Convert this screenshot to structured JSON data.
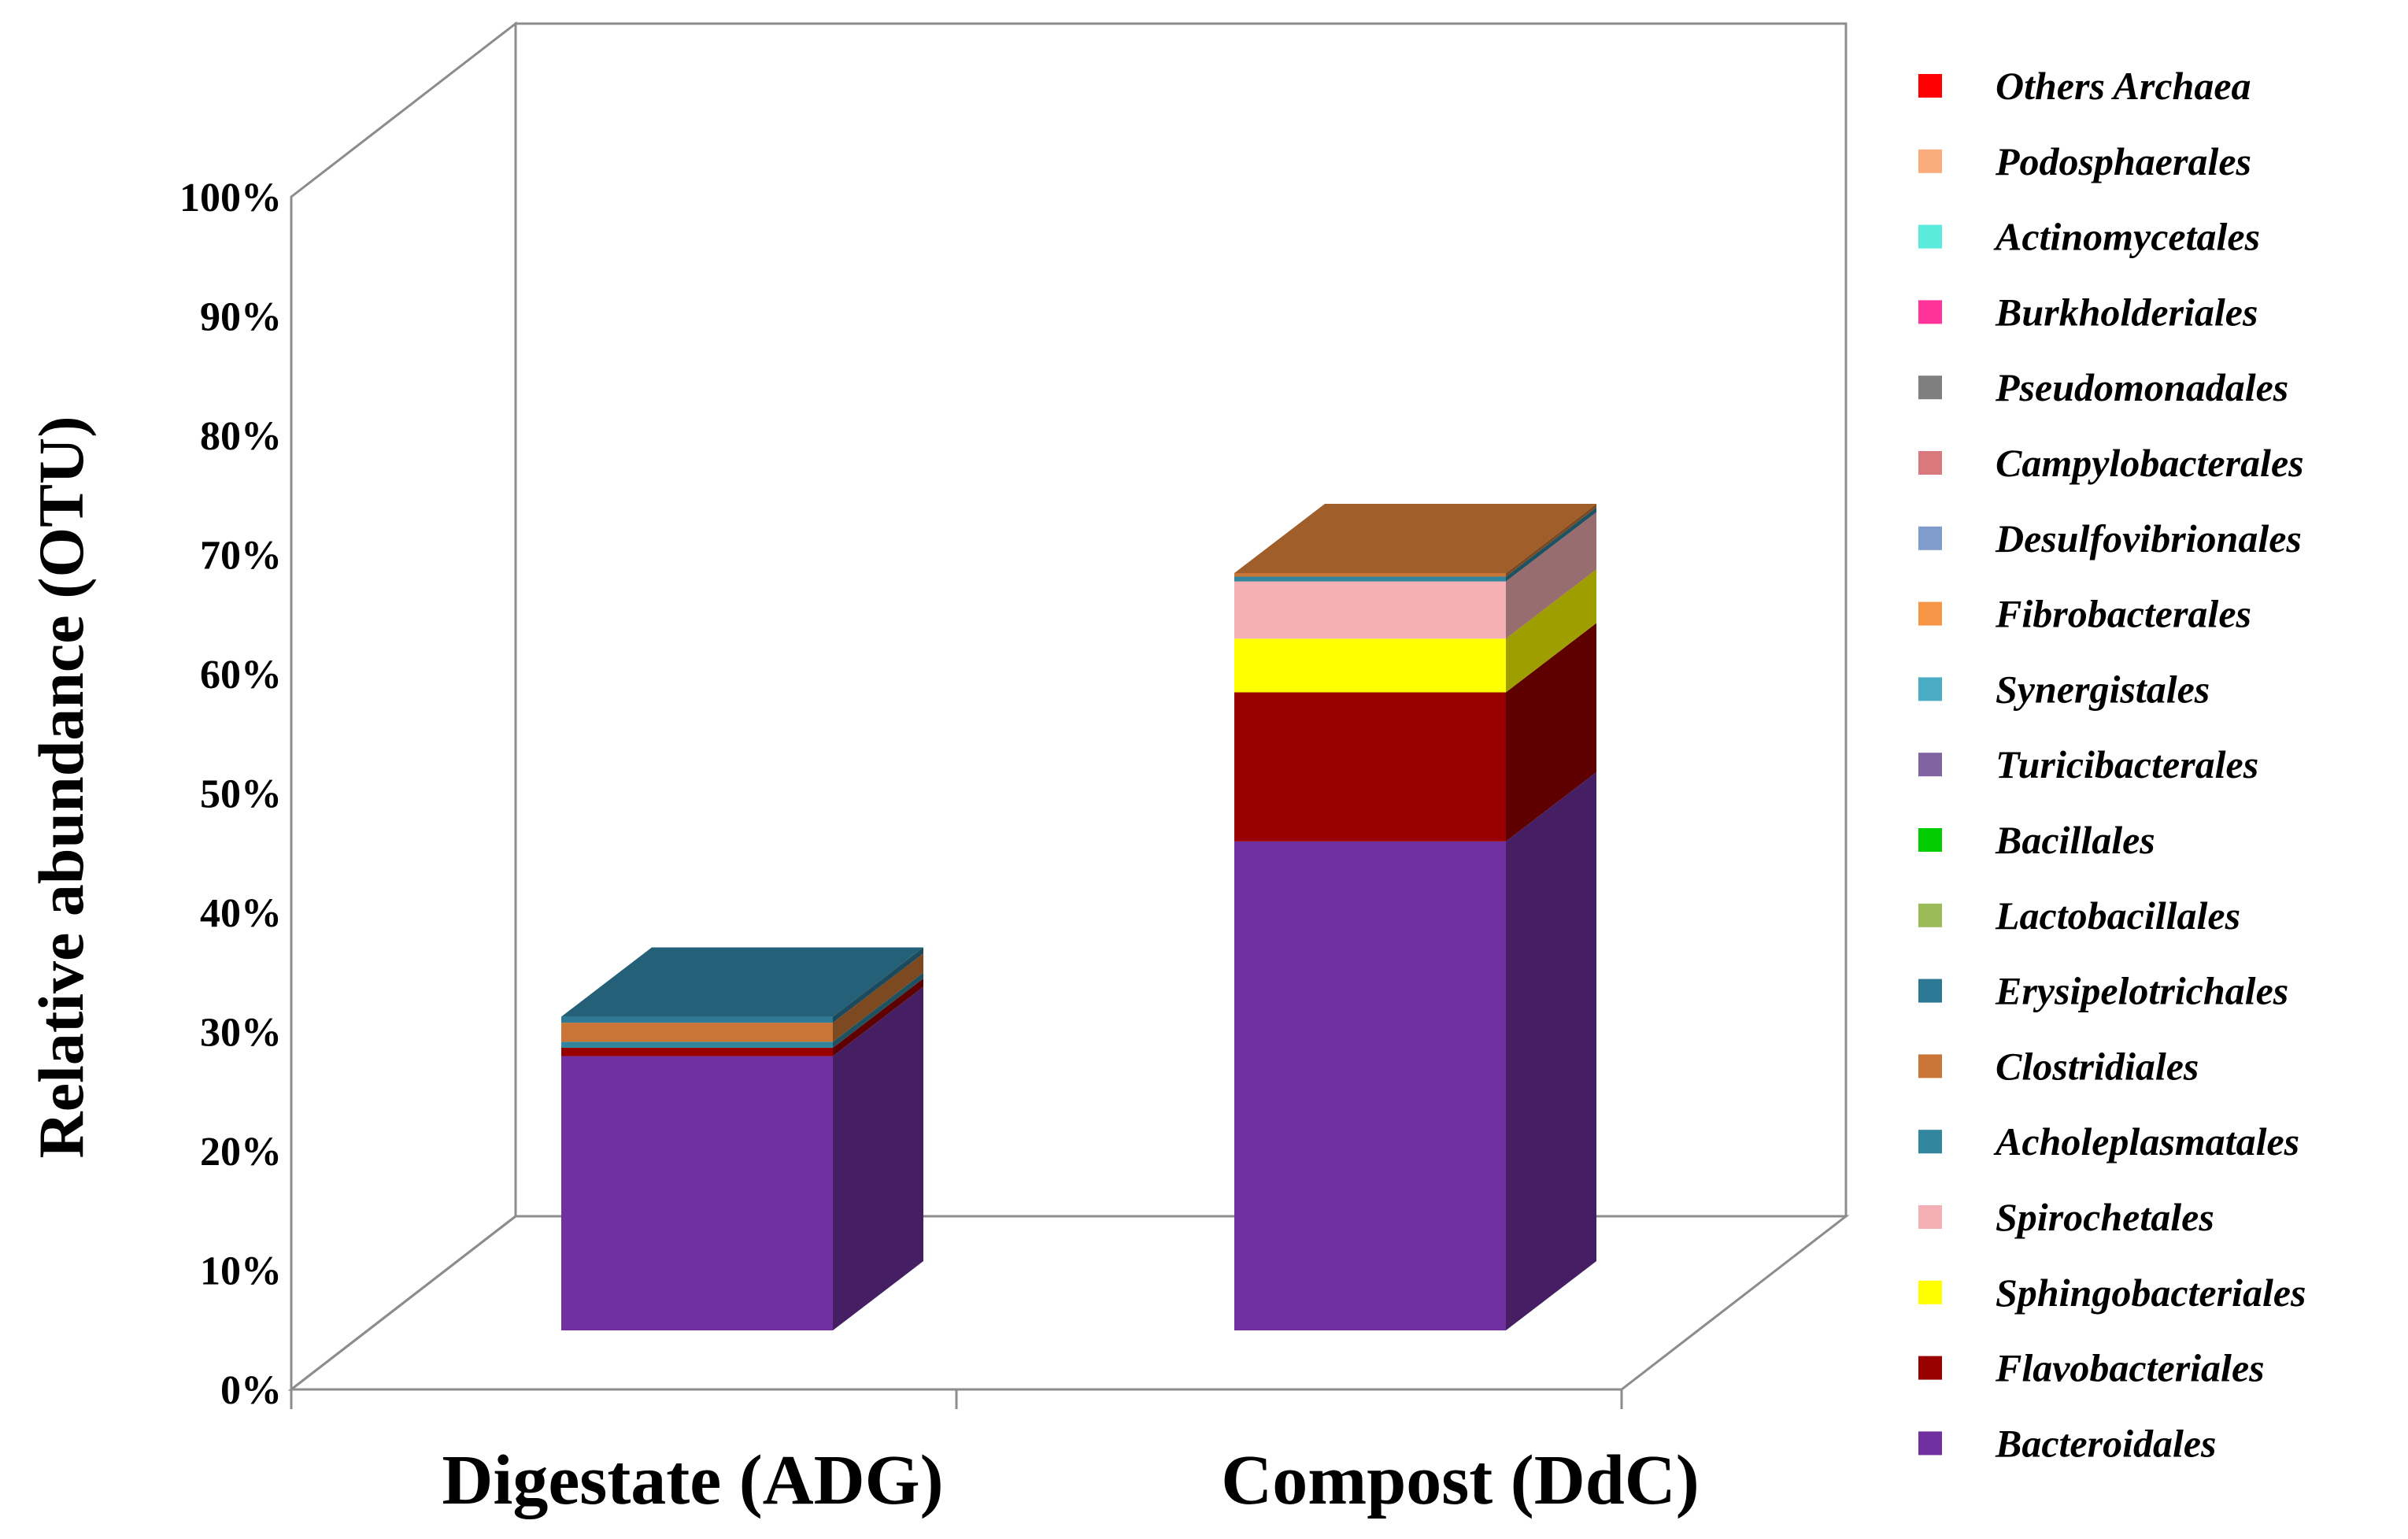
{
  "chart_data": {
    "type": "bar",
    "stacked": true,
    "three_d": true,
    "title": "",
    "ylabel": "Relative abundance (OTU)",
    "xlabel": "",
    "ylim": [
      0,
      100
    ],
    "yticks": [
      "0%",
      "10%",
      "20%",
      "30%",
      "40%",
      "50%",
      "60%",
      "70%",
      "80%",
      "90%",
      "100%"
    ],
    "categories": [
      "Digestate (ADG)",
      "Compost (DdC)"
    ],
    "legend_position": "right",
    "series": [
      {
        "name": "Bacteroidales",
        "color": "#7030A0",
        "values": [
          23.0,
          41.0
        ]
      },
      {
        "name": "Flavobacteriales",
        "color": "#990000",
        "values": [
          0.7,
          12.5
        ]
      },
      {
        "name": "Sphingobacteriales",
        "color": "#FFFF00",
        "values": [
          0.0,
          4.5
        ]
      },
      {
        "name": "Spirochetales",
        "color": "#F4B0B4",
        "values": [
          0.0,
          4.8
        ]
      },
      {
        "name": "Acholeplasmatales",
        "color": "#31859C",
        "values": [
          0.5,
          0.4
        ]
      },
      {
        "name": "Clostridiales",
        "color": "#C87535",
        "values": [
          1.6,
          0.3
        ]
      },
      {
        "name": "Erysipelotrichales",
        "color": "#2D7895",
        "values": [
          0.5,
          0.0
        ]
      },
      {
        "name": "Lactobacillales",
        "color": "#9BBB59",
        "values": [
          0.0,
          0.0
        ]
      },
      {
        "name": "Bacillales",
        "color": "#00CC00",
        "values": [
          0.0,
          0.0
        ]
      },
      {
        "name": "Turicibacterales",
        "color": "#8064A2",
        "values": [
          0.0,
          0.0
        ]
      },
      {
        "name": "Synergistales",
        "color": "#4BACC6",
        "values": [
          0.0,
          0.0
        ]
      },
      {
        "name": "Fibrobacterales",
        "color": "#F79646",
        "values": [
          0.0,
          0.0
        ]
      },
      {
        "name": "Desulfovibrionales",
        "color": "#7F9CCC",
        "values": [
          0.0,
          0.0
        ]
      },
      {
        "name": "Campylobacterales",
        "color": "#D9797D",
        "values": [
          0.0,
          0.0
        ]
      },
      {
        "name": "Pseudomonadales",
        "color": "#7F7F7F",
        "values": [
          0.0,
          0.0
        ]
      },
      {
        "name": "Burkholderiales",
        "color": "#FF3399",
        "values": [
          0.0,
          0.0
        ]
      },
      {
        "name": "Actinomycetales",
        "color": "#5AEBDC",
        "values": [
          0.0,
          0.0
        ]
      },
      {
        "name": "Podosphaerales",
        "color": "#FAAC7C",
        "values": [
          0.0,
          0.0
        ]
      },
      {
        "name": "Others Archaea",
        "color": "#FF0000",
        "values": [
          0.0,
          0.0
        ]
      }
    ]
  }
}
